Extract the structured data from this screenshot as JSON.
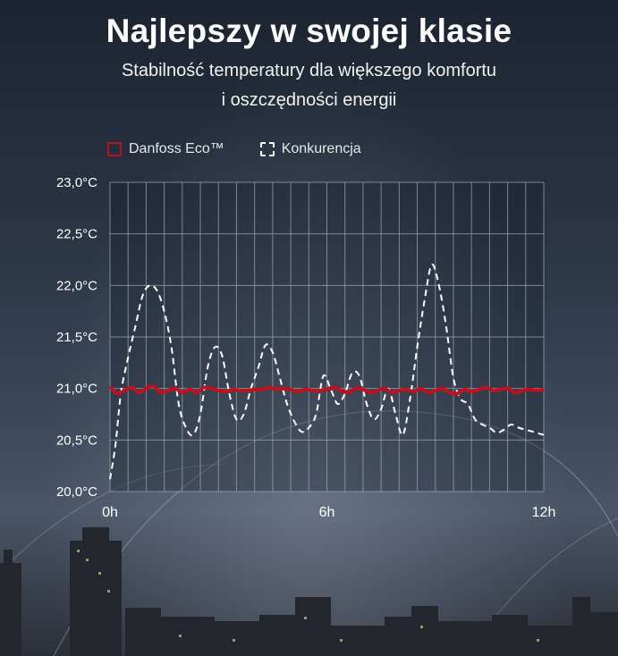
{
  "header": {
    "title": "Najlepszy w swojej klasie",
    "subtitle_line1": "Stabilność temperatury dla większego komfortu",
    "subtitle_line2": "i oszczędności energii"
  },
  "colors": {
    "danfoss": "#c0111f",
    "competition": "#ffffff",
    "grid": "#9aa3b0"
  },
  "chart_data": {
    "type": "line",
    "title": "Najlepszy w swojej klasie",
    "x_unit": "h",
    "xlim": [
      0,
      12
    ],
    "ylim": [
      20.0,
      23.0
    ],
    "x_ticks": [
      {
        "value": 0,
        "label": "0h"
      },
      {
        "value": 6,
        "label": "6h"
      },
      {
        "value": 12,
        "label": "12h"
      }
    ],
    "y_ticks": [
      {
        "value": 20.0,
        "label": "20,0°C"
      },
      {
        "value": 20.5,
        "label": "20,5°C"
      },
      {
        "value": 21.0,
        "label": "21,0°C"
      },
      {
        "value": 21.5,
        "label": "21,5°C"
      },
      {
        "value": 22.0,
        "label": "22,0°C"
      },
      {
        "value": 22.5,
        "label": "22,5°C"
      },
      {
        "value": 23.0,
        "label": "23,0°C"
      }
    ],
    "grid": true,
    "legend_position": "top-left",
    "series": [
      {
        "name": "Danfoss Eco™",
        "style": "solid",
        "x": [
          0,
          0.2,
          0.4,
          0.6,
          0.8,
          1.0,
          1.2,
          1.4,
          1.6,
          1.8,
          2.0,
          2.2,
          2.4,
          2.6,
          2.8,
          3.0,
          3.2,
          3.4,
          3.6,
          3.8,
          4.0,
          4.2,
          4.4,
          4.6,
          4.8,
          5.0,
          5.2,
          5.4,
          5.6,
          5.8,
          6.0,
          6.2,
          6.4,
          6.6,
          6.8,
          7.0,
          7.2,
          7.4,
          7.6,
          7.8,
          8.0,
          8.2,
          8.4,
          8.6,
          8.8,
          9.0,
          9.2,
          9.4,
          9.6,
          9.8,
          10.0,
          10.2,
          10.4,
          10.6,
          10.8,
          11.0,
          11.2,
          11.4,
          11.6,
          11.8,
          12.0
        ],
        "y": [
          21.02,
          20.95,
          20.98,
          21.01,
          20.96,
          21.0,
          21.02,
          20.96,
          20.98,
          21.0,
          20.96,
          20.99,
          20.96,
          21.01,
          21.0,
          20.98,
          20.97,
          20.99,
          20.98,
          20.98,
          20.99,
          20.99,
          21.01,
          20.99,
          21.0,
          20.99,
          20.97,
          20.99,
          20.98,
          20.98,
          20.99,
          21.01,
          20.98,
          20.96,
          21.0,
          20.99,
          20.96,
          20.98,
          21.0,
          20.96,
          20.98,
          20.99,
          20.97,
          21.0,
          20.96,
          20.98,
          21.0,
          20.96,
          20.95,
          20.99,
          20.97,
          20.99,
          21.01,
          20.98,
          20.99,
          21.0,
          20.96,
          20.98,
          20.99,
          20.98,
          20.99
        ]
      },
      {
        "name": "Konkurencja",
        "style": "dashed",
        "x": [
          0.0,
          0.15,
          0.3,
          0.5,
          0.7,
          0.9,
          1.1,
          1.3,
          1.5,
          1.7,
          1.9,
          2.1,
          2.3,
          2.5,
          2.7,
          2.9,
          3.1,
          3.3,
          3.5,
          3.7,
          3.9,
          4.1,
          4.3,
          4.5,
          4.7,
          4.9,
          5.1,
          5.3,
          5.5,
          5.7,
          5.9,
          6.1,
          6.3,
          6.5,
          6.7,
          6.9,
          7.1,
          7.3,
          7.5,
          7.7,
          7.9,
          8.1,
          8.3,
          8.5,
          8.7,
          8.9,
          9.1,
          9.3,
          9.5,
          9.7,
          9.9,
          10.1,
          10.3,
          10.5,
          10.7,
          10.9,
          11.1,
          11.3,
          11.5,
          11.7,
          12.0
        ],
        "y": [
          20.12,
          20.45,
          20.95,
          21.3,
          21.6,
          21.9,
          22.0,
          21.95,
          21.75,
          21.4,
          20.85,
          20.62,
          20.55,
          20.75,
          21.2,
          21.4,
          21.32,
          20.95,
          20.7,
          20.75,
          21.0,
          21.2,
          21.42,
          21.35,
          21.1,
          20.85,
          20.68,
          20.58,
          20.62,
          20.75,
          21.12,
          21.0,
          20.85,
          20.95,
          21.15,
          21.12,
          20.85,
          20.7,
          20.8,
          21.0,
          20.75,
          20.55,
          20.9,
          21.4,
          21.85,
          22.2,
          22.0,
          21.6,
          21.1,
          20.9,
          20.85,
          20.7,
          20.65,
          20.62,
          20.57,
          20.6,
          20.65,
          20.62,
          20.6,
          20.58,
          20.55
        ]
      }
    ]
  },
  "legend": {
    "danfoss_label": "Danfoss Eco™",
    "competition_label": "Konkurencja"
  }
}
